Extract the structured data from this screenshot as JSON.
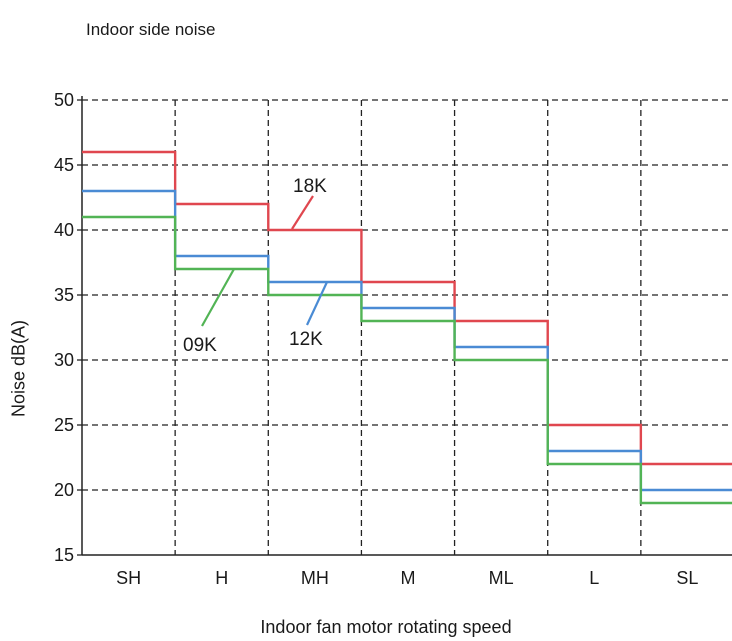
{
  "chart_data": {
    "type": "line",
    "step": true,
    "title": "Indoor side noise",
    "xlabel": "Indoor fan motor rotating speed",
    "ylabel": "Noise dB(A)",
    "categories": [
      "SH",
      "H",
      "MH",
      "M",
      "ML",
      "L",
      "SL"
    ],
    "yticks": [
      15,
      20,
      25,
      30,
      35,
      40,
      45,
      50
    ],
    "ylim": [
      15,
      50
    ],
    "grid": true,
    "series": [
      {
        "name": "18K",
        "color": "#e0474f",
        "values": [
          46,
          42,
          40,
          36,
          33,
          25,
          22
        ]
      },
      {
        "name": "12K",
        "color": "#4a8bd4",
        "values": [
          43,
          38,
          36,
          34,
          31,
          23,
          20
        ]
      },
      {
        "name": "09K",
        "color": "#52b455",
        "values": [
          41,
          37,
          35,
          33,
          30,
          22,
          19
        ]
      }
    ]
  }
}
